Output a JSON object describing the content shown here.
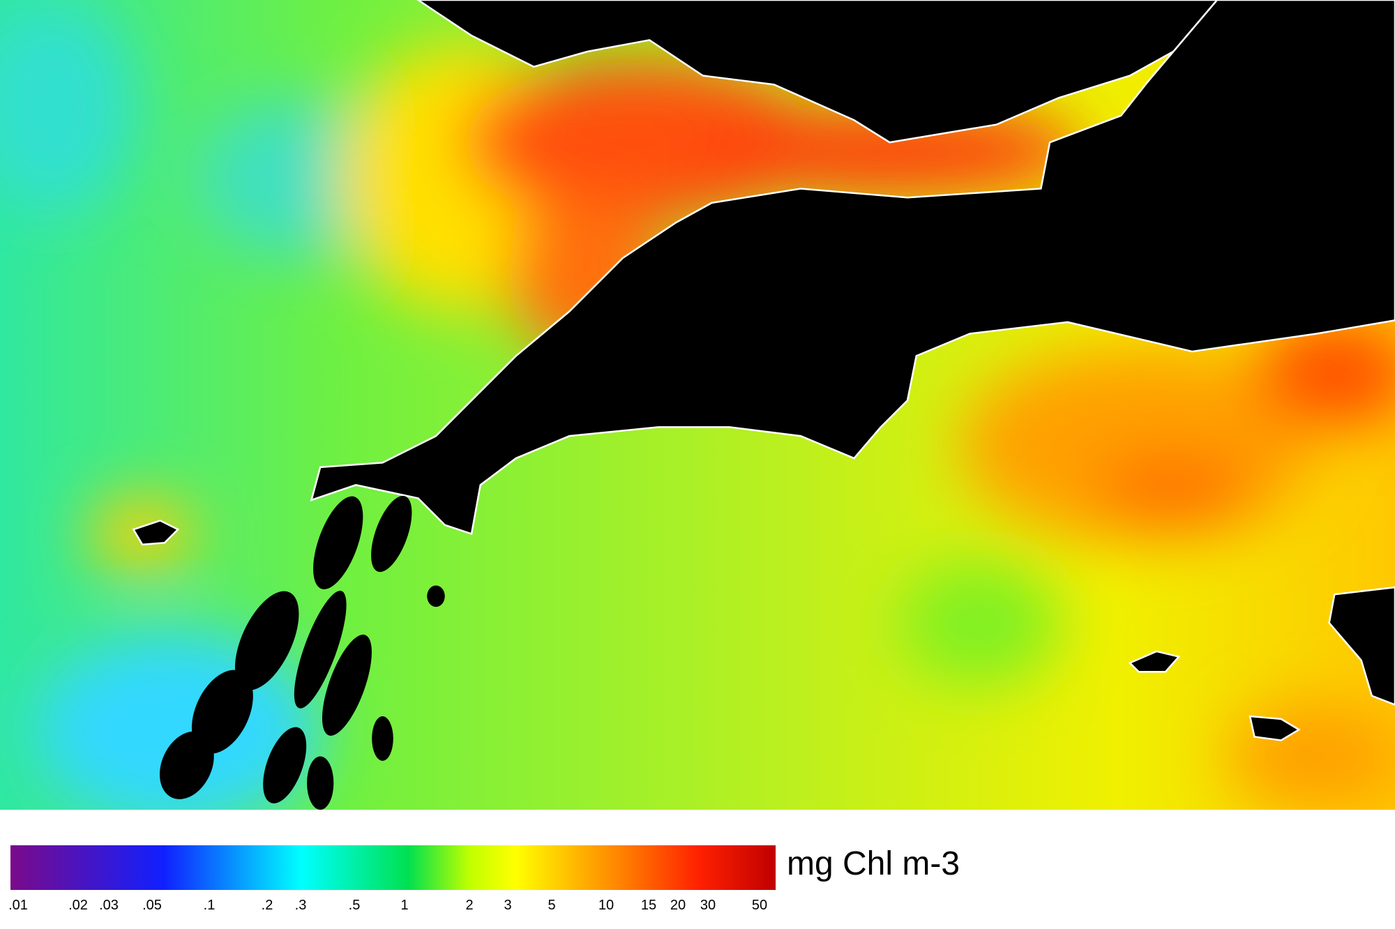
{
  "colorbar": {
    "unit": "mg Chl m-3",
    "ticks": [
      ".01",
      ".02",
      ".03",
      ".05",
      ".1",
      ".2",
      ".3",
      ".5",
      "1",
      "2",
      "3",
      "5",
      "10",
      "15",
      "20",
      "30",
      "50"
    ]
  }
}
